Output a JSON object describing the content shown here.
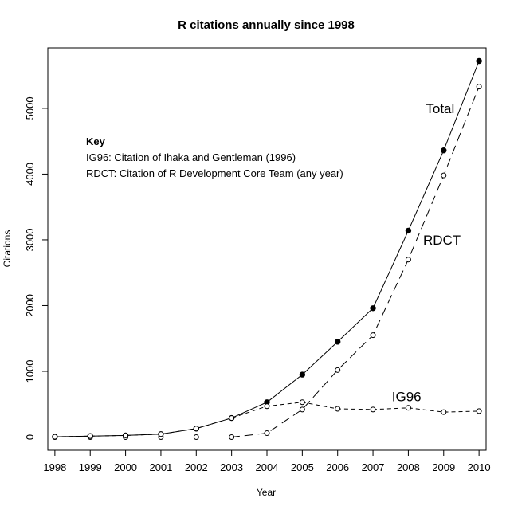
{
  "chart_data": {
    "type": "line",
    "title": "R citations annually since 1998",
    "xlabel": "Year",
    "ylabel": "Citations",
    "x": [
      1998,
      1999,
      2000,
      2001,
      2002,
      2003,
      2004,
      2005,
      2006,
      2007,
      2008,
      2009,
      2010
    ],
    "xlim": [
      1997.8,
      2010.2
    ],
    "ylim": [
      -200,
      5920
    ],
    "x_ticks": [
      1998,
      1999,
      2000,
      2001,
      2002,
      2003,
      2004,
      2005,
      2006,
      2007,
      2008,
      2009,
      2010
    ],
    "y_ticks": [
      0,
      1000,
      2000,
      3000,
      4000,
      5000
    ],
    "grid": false,
    "series": [
      {
        "name": "Total",
        "line_style": "solid",
        "marker": "filled-circle",
        "color": "#000000",
        "values": [
          5,
          15,
          25,
          45,
          130,
          290,
          530,
          950,
          1450,
          1960,
          3140,
          4360,
          5720
        ]
      },
      {
        "name": "RDCT",
        "line_style": "long-dash",
        "marker": "open-circle",
        "color": "#000000",
        "values": [
          0,
          0,
          0,
          0,
          0,
          0,
          60,
          420,
          1020,
          1550,
          2700,
          3980,
          5330
        ]
      },
      {
        "name": "IG96",
        "line_style": "short-dash",
        "marker": "open-circle",
        "color": "#000000",
        "values": [
          5,
          15,
          25,
          45,
          130,
          290,
          470,
          530,
          430,
          420,
          445,
          380,
          395
        ]
      }
    ],
    "series_labels": [
      {
        "name": "Total",
        "text": "Total",
        "at_x": 2008.9,
        "at_y": 5000
      },
      {
        "name": "RDCT",
        "text": "RDCT",
        "at_x": 2008.95,
        "at_y": 3000
      },
      {
        "name": "IG96",
        "text": "IG96",
        "at_x": 2007.95,
        "at_y": 620
      }
    ],
    "key": {
      "title": "Key",
      "lines": [
        "IG96: Citation of Ihaka and Gentleman (1996)",
        "RDCT: Citation of R Development Core Team (any year)"
      ]
    }
  }
}
